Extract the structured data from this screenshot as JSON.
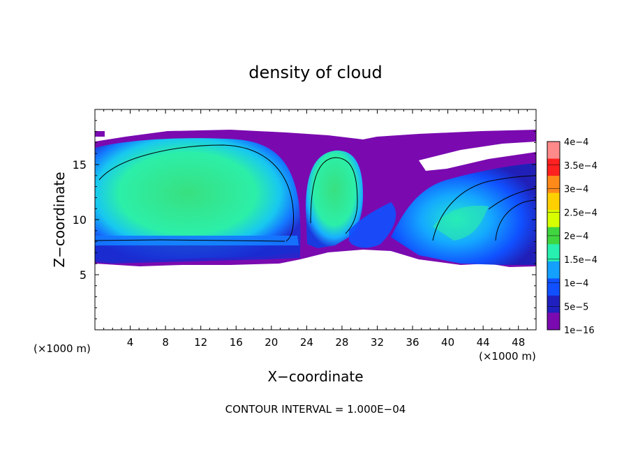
{
  "chart_data": {
    "type": "heatmap",
    "title": "density of cloud",
    "xlabel": "X−coordinate",
    "ylabel": "Z−coordinate",
    "x_unit_left": "(×1000 m)",
    "x_unit_right": "(×1000 m)",
    "footer": "CONTOUR INTERVAL = 1.000E−04",
    "xlim": [
      0,
      50
    ],
    "ylim": [
      0,
      20
    ],
    "x_ticks": [
      4,
      8,
      12,
      16,
      20,
      24,
      28,
      32,
      36,
      40,
      44,
      48
    ],
    "x_tick_labels": [
      "4",
      "8",
      "12",
      "16",
      "20",
      "24",
      "28",
      "32",
      "36",
      "40",
      "44",
      "48"
    ],
    "y_ticks": [
      5,
      10,
      15
    ],
    "y_tick_labels": [
      "5",
      "10",
      "15"
    ],
    "colorbar": {
      "labels": [
        "4e−4",
        "3.5e−4",
        "3e−4",
        "2.5e−4",
        "2e−4",
        "1.5e−4",
        "1e−4",
        "5e−5",
        "1e−16"
      ],
      "colors": [
        "#ff8a8a",
        "#ff2020",
        "#ff8a1a",
        "#ffd000",
        "#d8ff00",
        "#40d640",
        "#27f0b0",
        "#14a0ff",
        "#1050ff",
        "#2020c0",
        "#7a0ab0"
      ]
    },
    "cloud_regions": [
      {
        "name": "main cell",
        "x": [
          0,
          23
        ],
        "z": [
          6,
          17
        ],
        "peak": "1.8e-4"
      },
      {
        "name": "middle cell",
        "x": [
          23.5,
          30
        ],
        "z": [
          8,
          15.5
        ],
        "peak": "1.8e-4"
      },
      {
        "name": "anvil / thin layer",
        "x": [
          30,
          50
        ],
        "z": [
          6,
          18
        ],
        "peak": "5e-5"
      },
      {
        "name": "right cell",
        "x": [
          38,
          50
        ],
        "z": [
          6,
          14
        ],
        "peak": "1.3e-4"
      }
    ]
  }
}
